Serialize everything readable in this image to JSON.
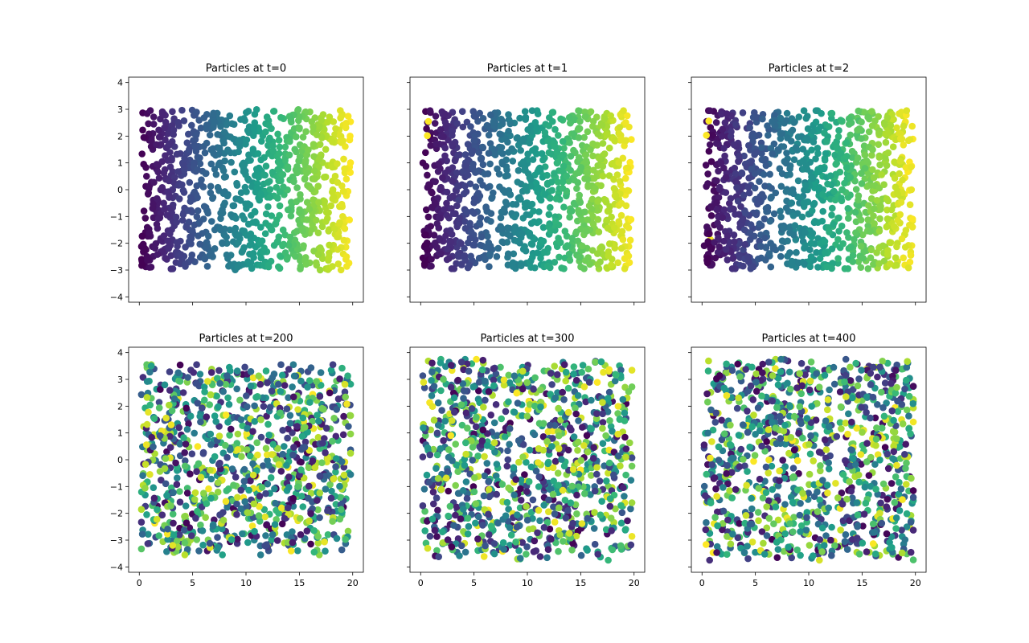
{
  "chart_data": [
    {
      "type": "scatter",
      "title": "Particles at t=0",
      "xlabel": "",
      "ylabel": "",
      "xlim": [
        -1,
        21
      ],
      "ylim": [
        -4.2,
        4.2
      ],
      "xticks": [
        0,
        5,
        10,
        15,
        20
      ],
      "yticks": [
        -4,
        -3,
        -2,
        -1,
        0,
        1,
        2,
        3,
        4
      ],
      "show_xticklabels": false,
      "show_yticklabels": true,
      "grid": false,
      "distribution": {
        "x_range": [
          0.2,
          19.8
        ],
        "y_range": [
          -3.0,
          3.0
        ],
        "count": 1000
      },
      "color_by": "initial_x",
      "colormap": "viridis"
    },
    {
      "type": "scatter",
      "title": "Particles at t=1",
      "xlabel": "",
      "ylabel": "",
      "xlim": [
        -1,
        21
      ],
      "ylim": [
        -4.2,
        4.2
      ],
      "xticks": [
        0,
        5,
        10,
        15,
        20
      ],
      "yticks": [
        -4,
        -3,
        -2,
        -1,
        0,
        1,
        2,
        3,
        4
      ],
      "show_xticklabels": false,
      "show_yticklabels": false,
      "grid": false,
      "distribution": {
        "x_range": [
          0.2,
          19.8
        ],
        "y_range": [
          -3.0,
          3.0
        ],
        "count": 1000
      },
      "color_by": "initial_x",
      "colormap": "viridis"
    },
    {
      "type": "scatter",
      "title": "Particles at t=2",
      "xlabel": "",
      "ylabel": "",
      "xlim": [
        -1,
        21
      ],
      "ylim": [
        -4.2,
        4.2
      ],
      "xticks": [
        0,
        5,
        10,
        15,
        20
      ],
      "yticks": [
        -4,
        -3,
        -2,
        -1,
        0,
        1,
        2,
        3,
        4
      ],
      "show_xticklabels": false,
      "show_yticklabels": false,
      "grid": false,
      "distribution": {
        "x_range": [
          0.2,
          19.8
        ],
        "y_range": [
          -3.0,
          3.0
        ],
        "count": 1000
      },
      "color_by": "initial_x",
      "colormap": "viridis"
    },
    {
      "type": "scatter",
      "title": "Particles at t=200",
      "xlabel": "",
      "ylabel": "",
      "xlim": [
        -1,
        21
      ],
      "ylim": [
        -4.2,
        4.2
      ],
      "xticks": [
        0,
        5,
        10,
        15,
        20
      ],
      "yticks": [
        -4,
        -3,
        -2,
        -1,
        0,
        1,
        2,
        3,
        4
      ],
      "show_xticklabels": true,
      "show_yticklabels": true,
      "grid": false,
      "distribution": {
        "x_range": [
          0.2,
          19.8
        ],
        "y_range": [
          -3.6,
          3.6
        ],
        "count": 1000
      },
      "color_by": "initial_x",
      "colormap": "viridis"
    },
    {
      "type": "scatter",
      "title": "Particles at t=300",
      "xlabel": "",
      "ylabel": "",
      "xlim": [
        -1,
        21
      ],
      "ylim": [
        -4.2,
        4.2
      ],
      "xticks": [
        0,
        5,
        10,
        15,
        20
      ],
      "yticks": [
        -4,
        -3,
        -2,
        -1,
        0,
        1,
        2,
        3,
        4
      ],
      "show_xticklabels": true,
      "show_yticklabels": false,
      "grid": false,
      "distribution": {
        "x_range": [
          0.2,
          19.8
        ],
        "y_range": [
          -3.8,
          3.8
        ],
        "count": 1000
      },
      "color_by": "initial_x",
      "colormap": "viridis"
    },
    {
      "type": "scatter",
      "title": "Particles at t=400",
      "xlabel": "",
      "ylabel": "",
      "xlim": [
        -1,
        21
      ],
      "ylim": [
        -4.2,
        4.2
      ],
      "xticks": [
        0,
        5,
        10,
        15,
        20
      ],
      "yticks": [
        -4,
        -3,
        -2,
        -1,
        0,
        1,
        2,
        3,
        4
      ],
      "show_xticklabels": true,
      "show_yticklabels": false,
      "grid": false,
      "distribution": {
        "x_range": [
          0.2,
          19.8
        ],
        "y_range": [
          -3.8,
          3.8
        ],
        "count": 1000
      },
      "color_by": "initial_x",
      "colormap": "viridis"
    }
  ]
}
